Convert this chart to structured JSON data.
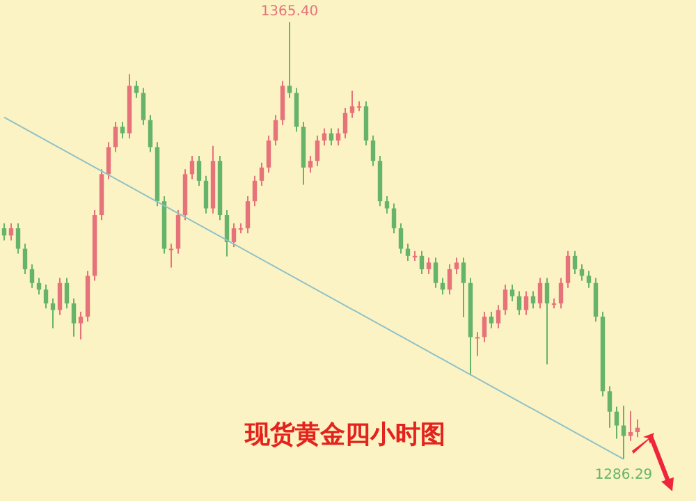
{
  "chart_data": {
    "type": "candlestick",
    "title": "现货黄金四小时图",
    "categories": [
      null,
      null,
      null,
      null,
      null,
      null,
      null,
      null,
      null,
      null,
      null,
      null,
      null,
      null,
      null,
      null,
      null,
      null,
      null,
      null,
      null,
      null,
      null,
      null,
      null,
      null,
      null,
      null,
      null,
      null,
      null,
      null,
      null,
      null,
      null,
      null,
      null,
      null,
      null,
      null,
      null,
      null,
      null,
      null,
      null,
      null,
      null,
      null,
      null,
      null,
      null,
      null,
      null,
      null,
      null,
      null,
      null,
      null,
      null,
      null,
      null,
      null,
      null,
      null,
      null,
      null,
      null,
      null,
      null,
      null,
      null,
      null,
      null,
      null,
      null,
      null,
      null,
      null,
      null,
      null,
      null,
      null,
      null,
      null,
      null,
      null,
      null,
      null,
      null,
      null,
      null,
      null
    ],
    "colors": [
      "#e6737a",
      "#66b36b"
    ],
    "series": [
      {
        "type": "candlestick",
        "ohlc": [
          [
            1328.1,
            1329.0,
            1325.9,
            1326.8
          ],
          [
            1326.8,
            1329.0,
            1325.9,
            1328.1
          ],
          [
            1328.1,
            1329.0,
            1323.5,
            1324.4
          ],
          [
            1324.4,
            1325.3,
            1319.8,
            1320.7
          ],
          [
            1320.7,
            1321.6,
            1317.3,
            1318.2
          ],
          [
            1318.2,
            1319.1,
            1316.1,
            1317.0
          ],
          [
            1317.0,
            1317.9,
            1313.6,
            1314.5
          ],
          [
            1314.5,
            1315.4,
            1310.0,
            1313.3
          ],
          [
            1313.3,
            1319.1,
            1312.4,
            1318.2
          ],
          [
            1318.2,
            1319.1,
            1313.6,
            1314.5
          ],
          [
            1314.5,
            1315.4,
            1308.5,
            1310.9
          ],
          [
            1310.9,
            1313.0,
            1308.0,
            1312.1
          ],
          [
            1312.1,
            1320.4,
            1311.2,
            1319.5
          ],
          [
            1319.5,
            1331.4,
            1318.6,
            1330.5
          ],
          [
            1330.5,
            1338.8,
            1329.6,
            1337.9
          ],
          [
            1337.9,
            1343.7,
            1337.0,
            1342.8
          ],
          [
            1342.8,
            1347.4,
            1341.9,
            1346.5
          ],
          [
            1346.5,
            1347.4,
            1344.4,
            1345.3
          ],
          [
            1345.3,
            1356.0,
            1344.4,
            1353.9
          ],
          [
            1353.9,
            1354.8,
            1351.7,
            1352.6
          ],
          [
            1352.6,
            1353.5,
            1346.8,
            1347.7
          ],
          [
            1347.7,
            1348.6,
            1341.9,
            1342.8
          ],
          [
            1342.8,
            1343.7,
            1332.1,
            1333.0
          ],
          [
            1333.0,
            1333.9,
            1323.5,
            1324.4
          ],
          [
            1324.4,
            1325.3,
            1321.0,
            1324.4
          ],
          [
            1324.4,
            1331.4,
            1323.5,
            1330.5
          ],
          [
            1330.5,
            1338.8,
            1329.6,
            1337.9
          ],
          [
            1337.9,
            1341.2,
            1337.0,
            1340.3
          ],
          [
            1340.3,
            1341.2,
            1335.8,
            1336.7
          ],
          [
            1336.7,
            1337.6,
            1330.8,
            1331.7
          ],
          [
            1331.7,
            1343.0,
            1330.8,
            1340.3
          ],
          [
            1340.3,
            1341.2,
            1329.6,
            1330.5
          ],
          [
            1330.5,
            1331.4,
            1323.0,
            1325.6
          ],
          [
            1325.6,
            1329.0,
            1324.7,
            1328.1
          ],
          [
            1328.1,
            1329.0,
            1327.2,
            1328.1
          ],
          [
            1328.1,
            1333.9,
            1327.2,
            1333.0
          ],
          [
            1333.0,
            1337.6,
            1332.1,
            1336.7
          ],
          [
            1336.7,
            1340.0,
            1335.8,
            1339.1
          ],
          [
            1339.1,
            1344.9,
            1338.2,
            1344.0
          ],
          [
            1344.0,
            1348.6,
            1343.1,
            1347.7
          ],
          [
            1347.7,
            1354.8,
            1346.8,
            1353.9
          ],
          [
            1353.9,
            1365.4,
            1351.7,
            1352.6
          ],
          [
            1352.6,
            1353.5,
            1345.6,
            1346.5
          ],
          [
            1346.5,
            1347.4,
            1336.0,
            1339.1
          ],
          [
            1339.1,
            1341.2,
            1338.2,
            1340.3
          ],
          [
            1340.3,
            1344.9,
            1339.4,
            1344.0
          ],
          [
            1344.0,
            1346.2,
            1343.1,
            1345.3
          ],
          [
            1345.3,
            1346.2,
            1343.1,
            1344.0
          ],
          [
            1344.0,
            1346.2,
            1343.1,
            1345.3
          ],
          [
            1345.3,
            1349.9,
            1344.4,
            1349.0
          ],
          [
            1349.0,
            1353.0,
            1348.1,
            1350.2
          ],
          [
            1350.2,
            1351.1,
            1349.3,
            1350.2
          ],
          [
            1350.2,
            1351.1,
            1343.1,
            1344.0
          ],
          [
            1344.0,
            1344.9,
            1339.4,
            1340.3
          ],
          [
            1340.3,
            1341.2,
            1332.1,
            1333.0
          ],
          [
            1333.0,
            1333.9,
            1330.8,
            1331.7
          ],
          [
            1331.7,
            1332.6,
            1327.2,
            1328.1
          ],
          [
            1328.1,
            1329.0,
            1323.5,
            1324.4
          ],
          [
            1324.4,
            1325.3,
            1322.2,
            1323.1
          ],
          [
            1323.1,
            1324.0,
            1322.2,
            1323.1
          ],
          [
            1323.1,
            1324.0,
            1319.8,
            1320.7
          ],
          [
            1320.7,
            1322.8,
            1319.8,
            1321.9
          ],
          [
            1321.9,
            1322.8,
            1317.3,
            1318.2
          ],
          [
            1318.2,
            1319.1,
            1316.1,
            1317.0
          ],
          [
            1317.0,
            1321.6,
            1316.1,
            1320.7
          ],
          [
            1320.7,
            1322.8,
            1319.8,
            1321.9
          ],
          [
            1321.9,
            1322.8,
            1312.0,
            1318.2
          ],
          [
            1318.2,
            1319.1,
            1301.5,
            1308.4
          ],
          [
            1308.4,
            1309.3,
            1305.0,
            1308.4
          ],
          [
            1308.4,
            1313.0,
            1307.5,
            1312.1
          ],
          [
            1312.1,
            1313.0,
            1310.0,
            1310.9
          ],
          [
            1310.9,
            1314.2,
            1310.0,
            1313.3
          ],
          [
            1313.3,
            1317.9,
            1312.4,
            1317.0
          ],
          [
            1317.0,
            1317.9,
            1314.9,
            1315.8
          ],
          [
            1315.8,
            1316.7,
            1312.4,
            1313.3
          ],
          [
            1313.3,
            1316.7,
            1312.4,
            1315.8
          ],
          [
            1315.8,
            1316.7,
            1313.6,
            1314.5
          ],
          [
            1314.5,
            1319.1,
            1313.6,
            1318.2
          ],
          [
            1318.2,
            1319.1,
            1303.5,
            1314.5
          ],
          [
            1314.5,
            1315.4,
            1313.6,
            1314.5
          ],
          [
            1314.5,
            1319.1,
            1313.6,
            1318.2
          ],
          [
            1318.2,
            1324.0,
            1317.3,
            1323.1
          ],
          [
            1323.1,
            1324.0,
            1319.8,
            1320.7
          ],
          [
            1320.7,
            1321.6,
            1318.6,
            1319.5
          ],
          [
            1319.5,
            1320.4,
            1317.3,
            1318.2
          ],
          [
            1318.2,
            1319.1,
            1311.2,
            1312.1
          ],
          [
            1312.1,
            1313.0,
            1297.7,
            1298.6
          ],
          [
            1298.6,
            1299.5,
            1292.0,
            1294.9
          ],
          [
            1294.9,
            1295.8,
            1290.0,
            1292.4
          ],
          [
            1292.4,
            1296.0,
            1286.29,
            1290.5
          ],
          [
            1290.5,
            1295.0,
            1289.6,
            1291.2
          ],
          [
            1291.2,
            1293.5,
            1290.3,
            1292.0
          ]
        ]
      },
      {
        "type": "line",
        "color": "#8fc1c7",
        "values": [
          1348.2,
          null,
          null,
          null,
          null,
          null,
          null,
          null,
          null,
          null,
          null,
          null,
          null,
          null,
          null,
          null,
          null,
          null,
          null,
          null,
          null,
          null,
          null,
          null,
          null,
          null,
          null,
          null,
          null,
          null,
          null,
          null,
          null,
          null,
          null,
          null,
          null,
          null,
          null,
          null,
          null,
          null,
          null,
          null,
          null,
          null,
          null,
          null,
          null,
          null,
          null,
          null,
          null,
          null,
          null,
          null,
          null,
          null,
          null,
          null,
          null,
          null,
          null,
          null,
          null,
          null,
          null,
          null,
          null,
          null,
          null,
          null,
          null,
          null,
          null,
          null,
          null,
          null,
          null,
          null,
          null,
          null,
          null,
          null,
          null,
          null,
          null,
          null,
          null,
          1286.3,
          null,
          null
        ]
      }
    ],
    "annotations": [
      {
        "text": "1365.40",
        "y": 1365.4
      },
      {
        "text": "1286.29",
        "y": 1286.29
      }
    ]
  }
}
